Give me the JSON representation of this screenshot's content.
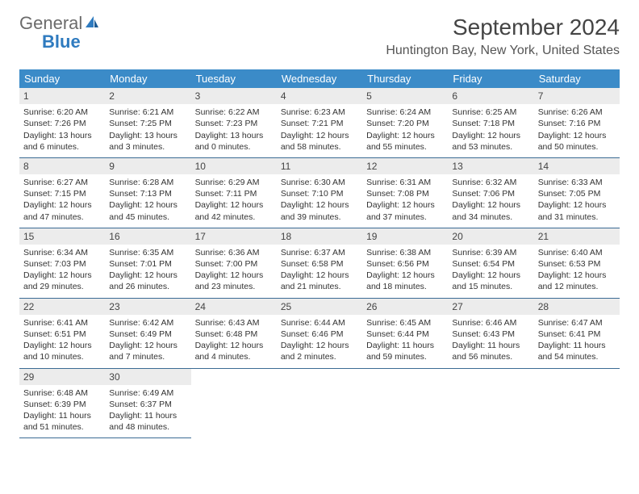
{
  "logo": {
    "general": "General",
    "blue": "Blue"
  },
  "title": "September 2024",
  "location": "Huntington Bay, New York, United States",
  "header_bg": "#3b8bc8",
  "header_fg": "#ffffff",
  "cell_border": "#3b6b94",
  "daynum_bg": "#ececec",
  "dow": [
    "Sunday",
    "Monday",
    "Tuesday",
    "Wednesday",
    "Thursday",
    "Friday",
    "Saturday"
  ],
  "weeks": [
    [
      {
        "n": "1",
        "sr": "Sunrise: 6:20 AM",
        "ss": "Sunset: 7:26 PM",
        "dl": "Daylight: 13 hours and 6 minutes."
      },
      {
        "n": "2",
        "sr": "Sunrise: 6:21 AM",
        "ss": "Sunset: 7:25 PM",
        "dl": "Daylight: 13 hours and 3 minutes."
      },
      {
        "n": "3",
        "sr": "Sunrise: 6:22 AM",
        "ss": "Sunset: 7:23 PM",
        "dl": "Daylight: 13 hours and 0 minutes."
      },
      {
        "n": "4",
        "sr": "Sunrise: 6:23 AM",
        "ss": "Sunset: 7:21 PM",
        "dl": "Daylight: 12 hours and 58 minutes."
      },
      {
        "n": "5",
        "sr": "Sunrise: 6:24 AM",
        "ss": "Sunset: 7:20 PM",
        "dl": "Daylight: 12 hours and 55 minutes."
      },
      {
        "n": "6",
        "sr": "Sunrise: 6:25 AM",
        "ss": "Sunset: 7:18 PM",
        "dl": "Daylight: 12 hours and 53 minutes."
      },
      {
        "n": "7",
        "sr": "Sunrise: 6:26 AM",
        "ss": "Sunset: 7:16 PM",
        "dl": "Daylight: 12 hours and 50 minutes."
      }
    ],
    [
      {
        "n": "8",
        "sr": "Sunrise: 6:27 AM",
        "ss": "Sunset: 7:15 PM",
        "dl": "Daylight: 12 hours and 47 minutes."
      },
      {
        "n": "9",
        "sr": "Sunrise: 6:28 AM",
        "ss": "Sunset: 7:13 PM",
        "dl": "Daylight: 12 hours and 45 minutes."
      },
      {
        "n": "10",
        "sr": "Sunrise: 6:29 AM",
        "ss": "Sunset: 7:11 PM",
        "dl": "Daylight: 12 hours and 42 minutes."
      },
      {
        "n": "11",
        "sr": "Sunrise: 6:30 AM",
        "ss": "Sunset: 7:10 PM",
        "dl": "Daylight: 12 hours and 39 minutes."
      },
      {
        "n": "12",
        "sr": "Sunrise: 6:31 AM",
        "ss": "Sunset: 7:08 PM",
        "dl": "Daylight: 12 hours and 37 minutes."
      },
      {
        "n": "13",
        "sr": "Sunrise: 6:32 AM",
        "ss": "Sunset: 7:06 PM",
        "dl": "Daylight: 12 hours and 34 minutes."
      },
      {
        "n": "14",
        "sr": "Sunrise: 6:33 AM",
        "ss": "Sunset: 7:05 PM",
        "dl": "Daylight: 12 hours and 31 minutes."
      }
    ],
    [
      {
        "n": "15",
        "sr": "Sunrise: 6:34 AM",
        "ss": "Sunset: 7:03 PM",
        "dl": "Daylight: 12 hours and 29 minutes."
      },
      {
        "n": "16",
        "sr": "Sunrise: 6:35 AM",
        "ss": "Sunset: 7:01 PM",
        "dl": "Daylight: 12 hours and 26 minutes."
      },
      {
        "n": "17",
        "sr": "Sunrise: 6:36 AM",
        "ss": "Sunset: 7:00 PM",
        "dl": "Daylight: 12 hours and 23 minutes."
      },
      {
        "n": "18",
        "sr": "Sunrise: 6:37 AM",
        "ss": "Sunset: 6:58 PM",
        "dl": "Daylight: 12 hours and 21 minutes."
      },
      {
        "n": "19",
        "sr": "Sunrise: 6:38 AM",
        "ss": "Sunset: 6:56 PM",
        "dl": "Daylight: 12 hours and 18 minutes."
      },
      {
        "n": "20",
        "sr": "Sunrise: 6:39 AM",
        "ss": "Sunset: 6:54 PM",
        "dl": "Daylight: 12 hours and 15 minutes."
      },
      {
        "n": "21",
        "sr": "Sunrise: 6:40 AM",
        "ss": "Sunset: 6:53 PM",
        "dl": "Daylight: 12 hours and 12 minutes."
      }
    ],
    [
      {
        "n": "22",
        "sr": "Sunrise: 6:41 AM",
        "ss": "Sunset: 6:51 PM",
        "dl": "Daylight: 12 hours and 10 minutes."
      },
      {
        "n": "23",
        "sr": "Sunrise: 6:42 AM",
        "ss": "Sunset: 6:49 PM",
        "dl": "Daylight: 12 hours and 7 minutes."
      },
      {
        "n": "24",
        "sr": "Sunrise: 6:43 AM",
        "ss": "Sunset: 6:48 PM",
        "dl": "Daylight: 12 hours and 4 minutes."
      },
      {
        "n": "25",
        "sr": "Sunrise: 6:44 AM",
        "ss": "Sunset: 6:46 PM",
        "dl": "Daylight: 12 hours and 2 minutes."
      },
      {
        "n": "26",
        "sr": "Sunrise: 6:45 AM",
        "ss": "Sunset: 6:44 PM",
        "dl": "Daylight: 11 hours and 59 minutes."
      },
      {
        "n": "27",
        "sr": "Sunrise: 6:46 AM",
        "ss": "Sunset: 6:43 PM",
        "dl": "Daylight: 11 hours and 56 minutes."
      },
      {
        "n": "28",
        "sr": "Sunrise: 6:47 AM",
        "ss": "Sunset: 6:41 PM",
        "dl": "Daylight: 11 hours and 54 minutes."
      }
    ],
    [
      {
        "n": "29",
        "sr": "Sunrise: 6:48 AM",
        "ss": "Sunset: 6:39 PM",
        "dl": "Daylight: 11 hours and 51 minutes."
      },
      {
        "n": "30",
        "sr": "Sunrise: 6:49 AM",
        "ss": "Sunset: 6:37 PM",
        "dl": "Daylight: 11 hours and 48 minutes."
      },
      null,
      null,
      null,
      null,
      null
    ]
  ]
}
